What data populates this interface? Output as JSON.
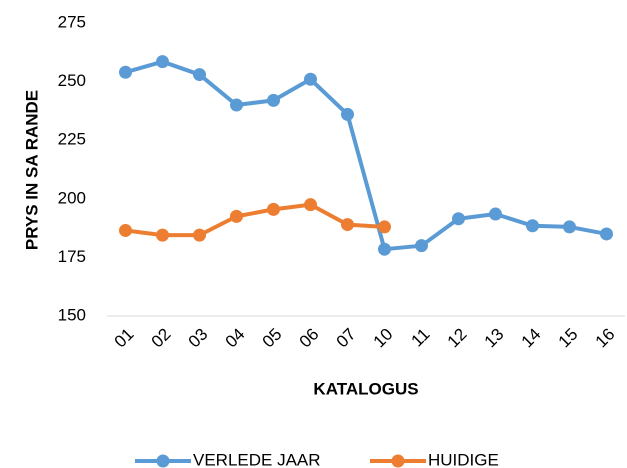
{
  "chart_data": {
    "type": "line",
    "y_label": "PRYS IN SA RANDE",
    "x_label": "KATALOGUS",
    "categories": [
      "01",
      "02",
      "03",
      "04",
      "05",
      "06",
      "07",
      "10",
      "11",
      "12",
      "13",
      "14",
      "15",
      "16"
    ],
    "series": [
      {
        "name": "VERLEDE JAAR",
        "color": "#5b9bd5",
        "values": [
          254,
          258.5,
          253,
          240,
          242,
          251,
          236,
          178.5,
          180,
          191.5,
          193.5,
          188.5,
          188,
          185
        ]
      },
      {
        "name": "HUIDIGE",
        "color": "#ed7d31",
        "values": [
          186.5,
          184.5,
          184.5,
          192.5,
          195.5,
          197.5,
          189,
          188,
          null,
          null,
          null,
          null,
          null,
          null
        ]
      }
    ],
    "ylim": [
      150,
      275
    ],
    "yticks": [
      150,
      175,
      200,
      225,
      250,
      275
    ],
    "grid": false,
    "legend": "bottom"
  }
}
